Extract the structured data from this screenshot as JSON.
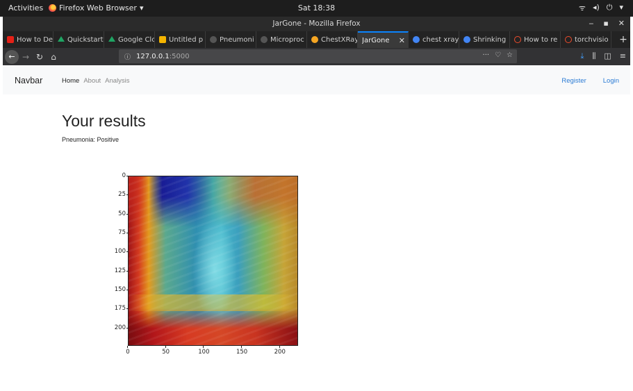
{
  "gnome": {
    "activities": "Activities",
    "app_name": "Firefox Web Browser",
    "clock": "Sat 18:38"
  },
  "window": {
    "title": "JarGone - Mozilla Firefox"
  },
  "tabs": [
    {
      "label": "How to De",
      "favicon": "youtube-icon",
      "color": "#e62117"
    },
    {
      "label": "Quickstart",
      "favicon": "google-drive-icon",
      "color": "#1fa463"
    },
    {
      "label": "Google Clo",
      "favicon": "google-drive-icon",
      "color": "#1fa463"
    },
    {
      "label": "Untitled p",
      "favicon": "google-slides-icon",
      "color": "#f4b400"
    },
    {
      "label": "Pneumoni",
      "favicon": "github-icon",
      "color": "#555555"
    },
    {
      "label": "Microproc",
      "favicon": "github-icon",
      "color": "#555555"
    },
    {
      "label": "ChestXRay",
      "favicon": "jupyter-icon",
      "color": "#f6a623"
    },
    {
      "label": "JarGone",
      "favicon": "",
      "color": "",
      "active": true
    },
    {
      "label": "chest xray",
      "favicon": "google-icon",
      "color": "#4285f4"
    },
    {
      "label": "Shrinking",
      "favicon": "google-icon",
      "color": "#4285f4"
    },
    {
      "label": "How to re",
      "favicon": "pytorch-icon",
      "color": "#ee4c2c"
    },
    {
      "label": "torchvisio",
      "favicon": "pytorch-icon",
      "color": "#ee4c2c"
    }
  ],
  "urlbar": {
    "host": "127.0.0.1",
    "port": ":5000"
  },
  "site": {
    "brand": "Navbar",
    "links": [
      "Home",
      "About",
      "Analysis"
    ],
    "register": "Register",
    "login": "Login",
    "heading": "Your results",
    "result_line": "Pneumonia: Positive"
  },
  "chart_data": {
    "type": "heatmap",
    "title": "",
    "xlabel": "",
    "ylabel": "",
    "xlim": [
      0,
      224
    ],
    "ylim": [
      224,
      0
    ],
    "x_ticks": [
      0,
      50,
      100,
      150,
      200
    ],
    "y_ticks": [
      0,
      25,
      50,
      75,
      100,
      125,
      150,
      175,
      200
    ],
    "colormap": "jet overlay on chest x-ray",
    "grid": false
  }
}
